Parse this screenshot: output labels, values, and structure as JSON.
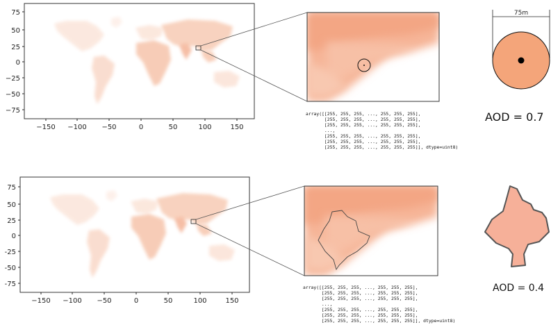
{
  "panels": [
    {
      "id": "top",
      "x_ticks": [
        "−150",
        "−100",
        "−50",
        "0",
        "50",
        "100",
        "150"
      ],
      "y_ticks": [
        "75",
        "50",
        "25",
        "0",
        "−25",
        "−50",
        "−75"
      ],
      "array_lines": [
        "array([[255, 255, 255, ..., 255, 255, 255],",
        "       [255, 255, 255, ..., 255, 255, 255],",
        "       [255, 255, 255, ..., 255, 255, 255],",
        "       ...,",
        "       [255, 255, 255, ..., 255, 255, 255],",
        "       [255, 255, 255, ..., 255, 255, 255],",
        "       [255, 255, 255, ..., 255, 255, 255]], dtype=uint8)"
      ],
      "scale_label": "75m",
      "aod_label": "AOD = 0.7",
      "shape_color": "#f4a57a"
    },
    {
      "id": "bottom",
      "x_ticks": [
        "−150",
        "−100",
        "−50",
        "0",
        "50",
        "100",
        "150"
      ],
      "y_ticks": [
        "75",
        "50",
        "25",
        "0",
        "-25",
        "-50",
        "-75"
      ],
      "array_lines": [
        "array([[255, 255, 255, ..., 255, 255, 255],",
        "       [255, 255, 255, ..., 255, 255, 255],",
        "       [255, 255, 255, ..., 255, 255, 255],",
        "       ...,",
        "       [255, 255, 255, ..., 255, 255, 255],",
        "       [255, 255, 255, ..., 255, 255, 255],",
        "       [255, 255, 255, ..., 255, 255, 255]], dtype=uint8)"
      ],
      "aod_label": "AOD = 0.4",
      "shape_color": "#f6b099"
    }
  ]
}
